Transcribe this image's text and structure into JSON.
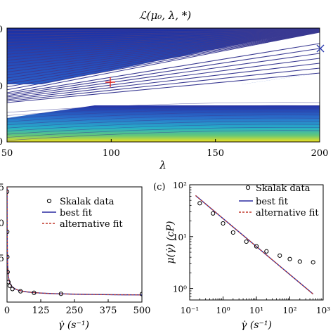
{
  "chart_data": [
    {
      "id": "top",
      "type": "contour",
      "title": "ℒ(μ₀, λ, *)",
      "xlabel": "λ",
      "xlim": [
        50,
        200
      ],
      "xticks": [
        "50",
        "100",
        "150",
        "200"
      ],
      "ytick_fragments": [
        "0",
        "0",
        "0"
      ],
      "markers": [
        {
          "symbol": "+",
          "x": 102,
          "y_frac": 0.46,
          "color": "#e8281e"
        },
        {
          "symbol": "×",
          "x": 200,
          "y_frac": 0.81,
          "color": "#2f3fb0"
        }
      ],
      "colors": {
        "low": "#1a2b9a",
        "mid": "#2a9fd0",
        "high": "#f7e41a",
        "line": "#3a3a92"
      }
    },
    {
      "id": "bottom-left",
      "type": "line",
      "xlabel": "γ̇ (s⁻¹)",
      "xlim": [
        0,
        500
      ],
      "xticks": [
        "0",
        "125",
        "250",
        "375",
        "500"
      ],
      "ytick_fragments": [
        "5",
        "0",
        "5"
      ],
      "legend": [
        "Skalak data",
        "best fit",
        "alternative fit"
      ],
      "series": [
        {
          "name": "Skalak data",
          "kind": "markers",
          "x": [
            0.2,
            0.5,
            1,
            2,
            5,
            10,
            20,
            50,
            100,
            200,
            500
          ],
          "y": [
            44,
            28,
            18,
            12,
            8,
            6.5,
            5.2,
            4.3,
            3.7,
            3.3,
            3.2
          ]
        },
        {
          "name": "best fit",
          "kind": "line",
          "color": "#2a2aa0"
        },
        {
          "name": "alternative fit",
          "kind": "dashed",
          "color": "#c0392b"
        }
      ]
    },
    {
      "id": "bottom-right",
      "type": "line",
      "panel_label": "(c)",
      "xscale": "log",
      "yscale": "log",
      "xlabel": "γ̇ (s⁻¹)",
      "ylabel": "μ(γ̇) (cP)",
      "xlim": [
        0.1,
        1000
      ],
      "ylim": [
        0.6,
        100
      ],
      "xticks": [
        "10⁻¹",
        "10⁰",
        "10¹",
        "10²",
        "10³"
      ],
      "yticks": [
        "10⁰",
        "10¹",
        "10²"
      ],
      "legend": [
        "Skalak data",
        "best fit",
        "alternative fit"
      ],
      "series": [
        {
          "name": "Skalak data",
          "kind": "markers",
          "x": [
            0.2,
            0.5,
            1,
            2,
            5,
            10,
            20,
            50,
            100,
            200,
            500
          ],
          "y": [
            44,
            28,
            18,
            12,
            8,
            6.5,
            5.2,
            4.3,
            3.7,
            3.3,
            3.2
          ]
        },
        {
          "name": "best fit",
          "kind": "line",
          "color": "#2a2aa0",
          "x": [
            0.15,
            500
          ],
          "y": [
            62,
            0.78
          ]
        },
        {
          "name": "alternative fit",
          "kind": "dashed",
          "color": "#c0392b",
          "x": [
            0.15,
            500
          ],
          "y": [
            62,
            0.78
          ]
        }
      ]
    }
  ]
}
